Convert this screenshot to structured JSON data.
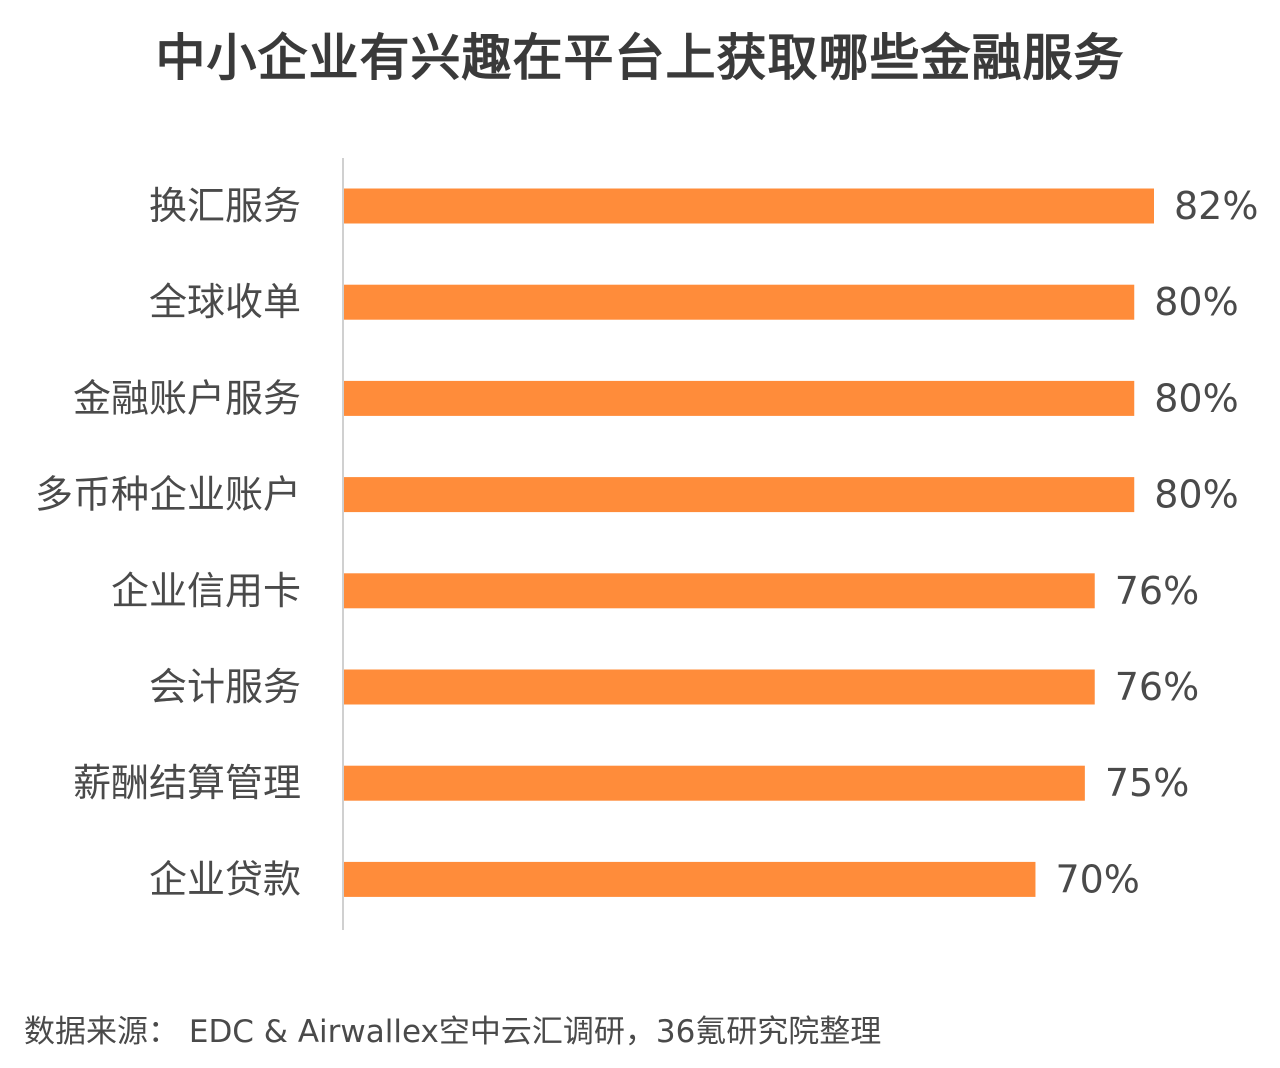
{
  "chart_data": {
    "type": "bar",
    "orientation": "horizontal",
    "title": "中小企业有兴趣在平台上获取哪些金融服务",
    "categories": [
      "换汇服务",
      "全球收单",
      "金融账户服务",
      "多币种企业账户",
      "企业信用卡",
      "会计服务",
      "薪酬结算管理",
      "企业贷款"
    ],
    "values": [
      82,
      80,
      80,
      80,
      76,
      76,
      75,
      70
    ],
    "value_labels": [
      "82%",
      "80%",
      "80%",
      "80%",
      "76%",
      "76%",
      "75%",
      "70%"
    ],
    "unit": "%",
    "xlabel": "",
    "ylabel": "",
    "bar_color": "#FF8C3A",
    "axis_color": "#d0d0d0"
  },
  "source": "数据来源： EDC & Airwallex空中云汇调研，36氪研究院整理"
}
